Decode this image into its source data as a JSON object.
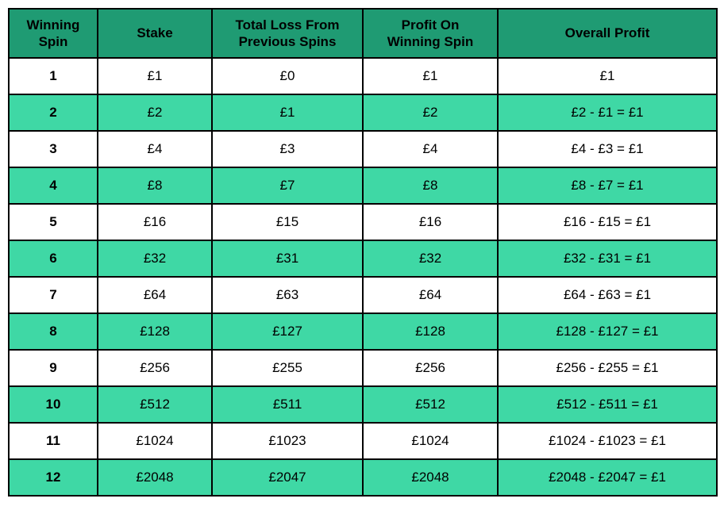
{
  "colors": {
    "header_bg": "#1f9b73",
    "stripe_bg": "#3fd8a5",
    "plain_bg": "#ffffff",
    "border": "#000000",
    "text": "#000000"
  },
  "columns": [
    "Winning\nSpin",
    "Stake",
    "Total Loss From\nPrevious Spins",
    "Profit On\nWinning Spin",
    "Overall Profit"
  ],
  "rows": [
    {
      "spin": "1",
      "stake": "£1",
      "loss": "£0",
      "profit": "£1",
      "overall": "£1"
    },
    {
      "spin": "2",
      "stake": "£2",
      "loss": "£1",
      "profit": "£2",
      "overall": "£2 - £1 = £1"
    },
    {
      "spin": "3",
      "stake": "£4",
      "loss": "£3",
      "profit": "£4",
      "overall": "£4 - £3 = £1"
    },
    {
      "spin": "4",
      "stake": "£8",
      "loss": "£7",
      "profit": "£8",
      "overall": "£8 - £7 = £1"
    },
    {
      "spin": "5",
      "stake": "£16",
      "loss": "£15",
      "profit": "£16",
      "overall": "£16 - £15 = £1"
    },
    {
      "spin": "6",
      "stake": "£32",
      "loss": "£31",
      "profit": "£32",
      "overall": "£32 - £31 = £1"
    },
    {
      "spin": "7",
      "stake": "£64",
      "loss": "£63",
      "profit": "£64",
      "overall": "£64 - £63 = £1"
    },
    {
      "spin": "8",
      "stake": "£128",
      "loss": "£127",
      "profit": "£128",
      "overall": "£128 - £127 = £1"
    },
    {
      "spin": "9",
      "stake": "£256",
      "loss": "£255",
      "profit": "£256",
      "overall": "£256 - £255 = £1"
    },
    {
      "spin": "10",
      "stake": "£512",
      "loss": "£511",
      "profit": "£512",
      "overall": "£512 - £511 = £1"
    },
    {
      "spin": "11",
      "stake": "£1024",
      "loss": "£1023",
      "profit": "£1024",
      "overall": "£1024 - £1023 = £1"
    },
    {
      "spin": "12",
      "stake": "£2048",
      "loss": "£2047",
      "profit": "£2048",
      "overall": "£2048 - £2047 = £1"
    }
  ]
}
